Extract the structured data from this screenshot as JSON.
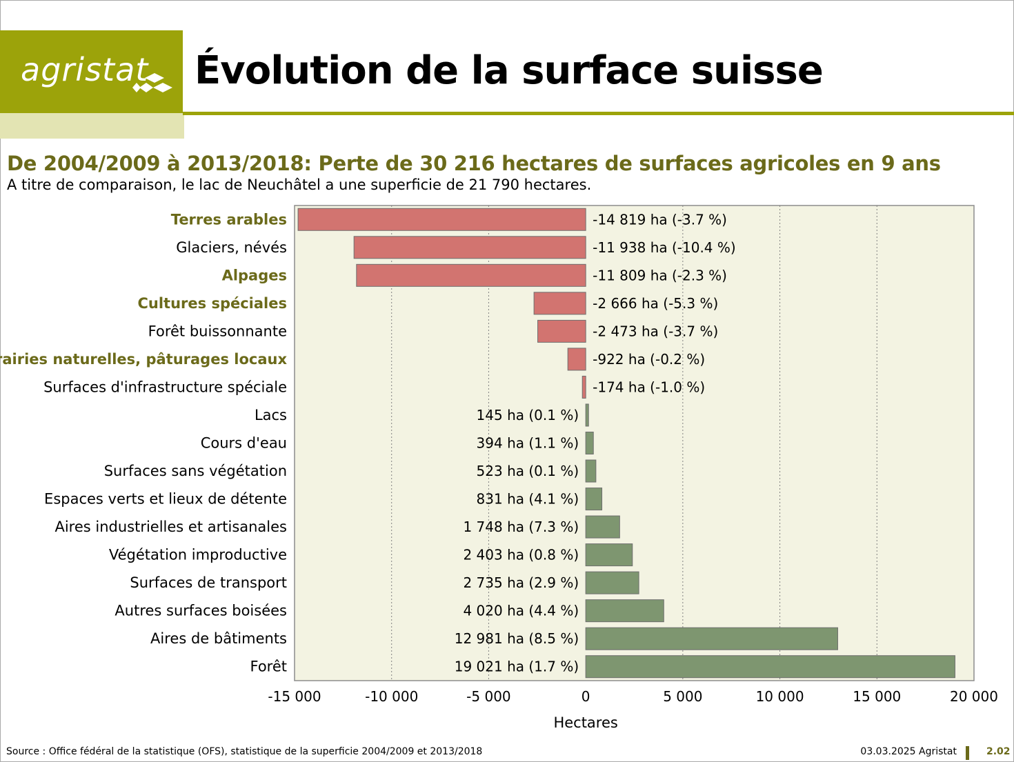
{
  "header": {
    "logo_text": "agristat",
    "title": "Évolution de la surface suisse"
  },
  "subtitle": "De 2004/2009 à 2013/2018: Perte de 30 216 hectares de surfaces agricoles en 9 ans",
  "subline": "A titre de comparaison, le lac de Neuchâtel a une superficie de 21 790 hectares.",
  "colors": {
    "brand": "#9ca30a",
    "brand_light": "#e3e4b3",
    "agri_label": "#6b6a1a",
    "negative_bar": "#d27470",
    "positive_bar": "#7e9670",
    "plot_bg": "#f3f3e2"
  },
  "chart_data": {
    "type": "bar",
    "orientation": "horizontal",
    "xlabel": "Hectares",
    "xlim": [
      -15000,
      20000
    ],
    "xticks": [
      -15000,
      -10000,
      -5000,
      0,
      5000,
      10000,
      15000,
      20000
    ],
    "xtick_labels": [
      "-15 000",
      "-10 000",
      "-5 000",
      "0",
      "5 000",
      "10 000",
      "15 000",
      "20 000"
    ],
    "grid": "vertical dotted",
    "categories": [
      "Terres arables",
      "Glaciers, névés",
      "Alpages",
      "Cultures spéciales",
      "Forêt buissonnante",
      "Prairies naturelles, pâturages locaux",
      "Surfaces d'infrastructure spéciale",
      "Lacs",
      "Cours d'eau",
      "Surfaces sans végétation",
      "Espaces verts et lieux de détente",
      "Aires industrielles et artisanales",
      "Végétation improductive",
      "Surfaces de transport",
      "Autres surfaces boisées",
      "Aires de bâtiments",
      "Forêt"
    ],
    "agricultural": [
      true,
      false,
      true,
      true,
      false,
      true,
      false,
      false,
      false,
      false,
      false,
      false,
      false,
      false,
      false,
      false,
      false
    ],
    "values": [
      -14819,
      -11938,
      -11809,
      -2666,
      -2473,
      -922,
      -174,
      145,
      394,
      523,
      831,
      1748,
      2403,
      2735,
      4020,
      12981,
      19021
    ],
    "data_labels": [
      "-14 819 ha (-3.7 %)",
      "-11 938 ha (-10.4 %)",
      "-11 809 ha (-2.3 %)",
      "-2 666 ha (-5.3 %)",
      "-2 473 ha (-3.7 %)",
      "-922 ha (-0.2 %)",
      "-174 ha (-1.0 %)",
      "145 ha (0.1 %)",
      "394 ha (1.1 %)",
      "523 ha (0.1 %)",
      "831 ha (4.1 %)",
      "1 748 ha (7.3 %)",
      "2 403 ha (0.8 %)",
      "2 735 ha (2.9 %)",
      "4 020 ha (4.4 %)",
      "12 981 ha (8.5 %)",
      "19 021 ha (1.7 %)"
    ]
  },
  "footer": {
    "source": "Source : Office fédéral de la statistique (OFS), statistique de la superficie 2004/2009 et 2013/2018",
    "date": "03.03.2025 Agristat",
    "page": "2.02"
  }
}
